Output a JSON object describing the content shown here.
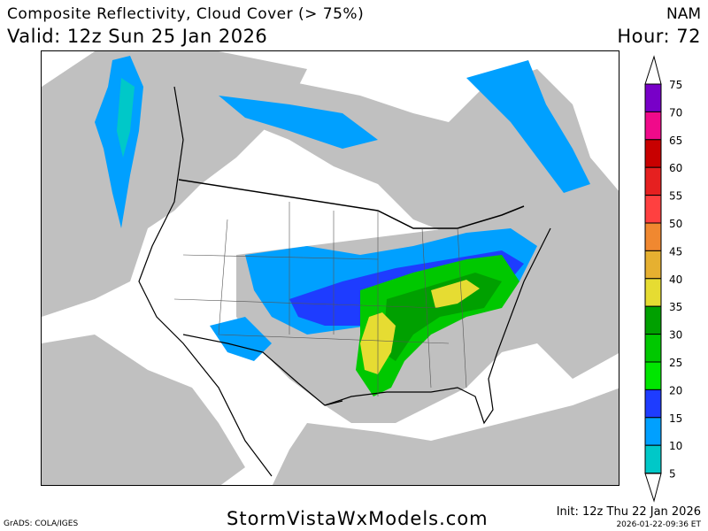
{
  "header": {
    "title": "Composite Reflectivity, Cloud Cover (> 75%)",
    "valid": "Valid: 12z Sun 25 Jan 2026",
    "model": "NAM",
    "hour": "Hour: 72"
  },
  "colorbar": {
    "labels": [
      "75",
      "70",
      "65",
      "60",
      "55",
      "50",
      "45",
      "40",
      "35",
      "30",
      "25",
      "20",
      "15",
      "10",
      "5"
    ],
    "colors": [
      "#7800c8",
      "#f00a8a",
      "#c80000",
      "#e62020",
      "#ff4040",
      "#f08830",
      "#e6b030",
      "#e6dc32",
      "#00a000",
      "#00c800",
      "#00e600",
      "#1e3cff",
      "#00a0ff",
      "#00c8c8"
    ]
  },
  "map": {
    "cloud_color": "#c0c0c0",
    "border_color": "#000000"
  },
  "footer": {
    "site": "StormVistaWxModels.com",
    "grads": "GrADS: COLA/IGES",
    "init": "Init: 12z Thu 22 Jan 2026",
    "timestamp": "2026-01-22-09:36 ET"
  }
}
